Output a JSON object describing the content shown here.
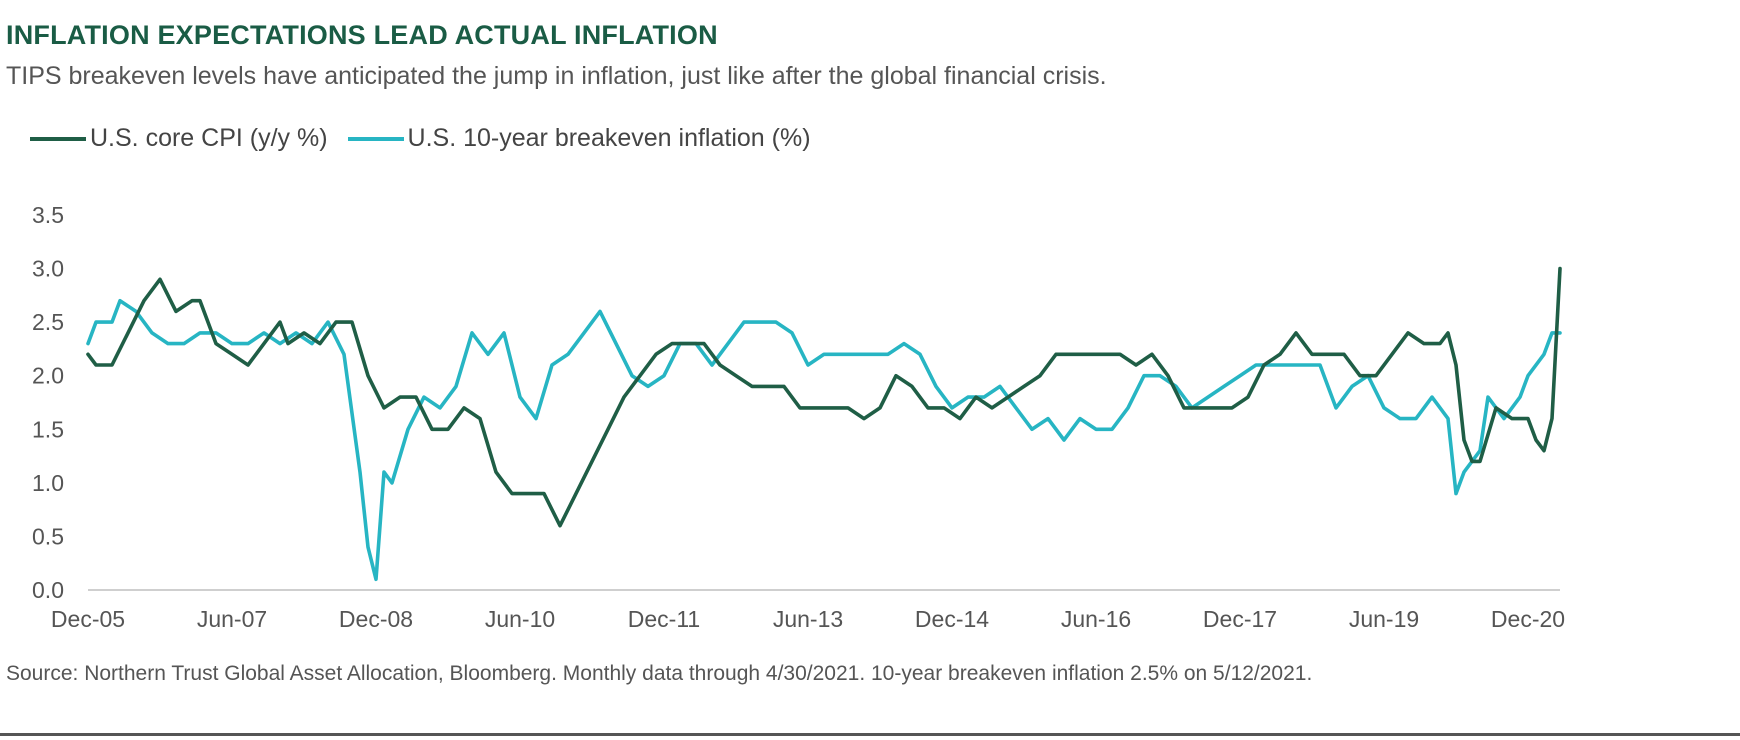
{
  "header": {
    "title": "INFLATION EXPECTATIONS LEAD ACTUAL INFLATION",
    "subtitle": "TIPS breakeven levels have anticipated the jump in inflation, just like after the global financial crisis."
  },
  "footer": {
    "source": "Source: Northern Trust Global Asset Allocation, Bloomberg. Monthly data through 4/30/2021. 10-year breakeven inflation 2.5% on 5/12/2021."
  },
  "chart_data": {
    "type": "line",
    "xlim": [
      "2005-12",
      "2021-04"
    ],
    "ylim": [
      0,
      3.5
    ],
    "grid": false,
    "legend_position": "top-left",
    "x_ticks": [
      "Dec-05",
      "Jun-07",
      "Dec-08",
      "Jun-10",
      "Dec-11",
      "Jun-13",
      "Dec-14",
      "Jun-16",
      "Dec-17",
      "Jun-19",
      "Dec-20"
    ],
    "y_ticks": [
      "0.0",
      "0.5",
      "1.0",
      "1.5",
      "2.0",
      "2.5",
      "3.0",
      "3.5"
    ],
    "series": [
      {
        "name": "U.S. core CPI (y/y %)",
        "color": "#1f5e46",
        "points": [
          [
            "2005-12",
            2.2
          ],
          [
            "2006-01",
            2.1
          ],
          [
            "2006-03",
            2.1
          ],
          [
            "2006-05",
            2.4
          ],
          [
            "2006-07",
            2.7
          ],
          [
            "2006-09",
            2.9
          ],
          [
            "2006-11",
            2.6
          ],
          [
            "2007-01",
            2.7
          ],
          [
            "2007-02",
            2.7
          ],
          [
            "2007-04",
            2.3
          ],
          [
            "2007-06",
            2.2
          ],
          [
            "2007-08",
            2.1
          ],
          [
            "2007-10",
            2.3
          ],
          [
            "2007-12",
            2.5
          ],
          [
            "2008-01",
            2.3
          ],
          [
            "2008-03",
            2.4
          ],
          [
            "2008-05",
            2.3
          ],
          [
            "2008-07",
            2.5
          ],
          [
            "2008-09",
            2.5
          ],
          [
            "2008-11",
            2.0
          ],
          [
            "2009-01",
            1.7
          ],
          [
            "2009-03",
            1.8
          ],
          [
            "2009-05",
            1.8
          ],
          [
            "2009-07",
            1.5
          ],
          [
            "2009-09",
            1.5
          ],
          [
            "2009-11",
            1.7
          ],
          [
            "2010-01",
            1.6
          ],
          [
            "2010-03",
            1.1
          ],
          [
            "2010-05",
            0.9
          ],
          [
            "2010-07",
            0.9
          ],
          [
            "2010-09",
            0.9
          ],
          [
            "2010-11",
            0.6
          ],
          [
            "2011-01",
            0.9
          ],
          [
            "2011-03",
            1.2
          ],
          [
            "2011-05",
            1.5
          ],
          [
            "2011-07",
            1.8
          ],
          [
            "2011-09",
            2.0
          ],
          [
            "2011-11",
            2.2
          ],
          [
            "2012-01",
            2.3
          ],
          [
            "2012-03",
            2.3
          ],
          [
            "2012-05",
            2.3
          ],
          [
            "2012-07",
            2.1
          ],
          [
            "2012-09",
            2.0
          ],
          [
            "2012-11",
            1.9
          ],
          [
            "2013-01",
            1.9
          ],
          [
            "2013-03",
            1.9
          ],
          [
            "2013-05",
            1.7
          ],
          [
            "2013-07",
            1.7
          ],
          [
            "2013-09",
            1.7
          ],
          [
            "2013-11",
            1.7
          ],
          [
            "2014-01",
            1.6
          ],
          [
            "2014-03",
            1.7
          ],
          [
            "2014-05",
            2.0
          ],
          [
            "2014-07",
            1.9
          ],
          [
            "2014-09",
            1.7
          ],
          [
            "2014-11",
            1.7
          ],
          [
            "2015-01",
            1.6
          ],
          [
            "2015-03",
            1.8
          ],
          [
            "2015-05",
            1.7
          ],
          [
            "2015-07",
            1.8
          ],
          [
            "2015-09",
            1.9
          ],
          [
            "2015-11",
            2.0
          ],
          [
            "2016-01",
            2.2
          ],
          [
            "2016-03",
            2.2
          ],
          [
            "2016-05",
            2.2
          ],
          [
            "2016-07",
            2.2
          ],
          [
            "2016-09",
            2.2
          ],
          [
            "2016-11",
            2.1
          ],
          [
            "2017-01",
            2.2
          ],
          [
            "2017-03",
            2.0
          ],
          [
            "2017-05",
            1.7
          ],
          [
            "2017-07",
            1.7
          ],
          [
            "2017-09",
            1.7
          ],
          [
            "2017-11",
            1.7
          ],
          [
            "2018-01",
            1.8
          ],
          [
            "2018-03",
            2.1
          ],
          [
            "2018-05",
            2.2
          ],
          [
            "2018-07",
            2.4
          ],
          [
            "2018-09",
            2.2
          ],
          [
            "2018-11",
            2.2
          ],
          [
            "2019-01",
            2.2
          ],
          [
            "2019-03",
            2.0
          ],
          [
            "2019-05",
            2.0
          ],
          [
            "2019-07",
            2.2
          ],
          [
            "2019-09",
            2.4
          ],
          [
            "2019-11",
            2.3
          ],
          [
            "2020-01",
            2.3
          ],
          [
            "2020-02",
            2.4
          ],
          [
            "2020-03",
            2.1
          ],
          [
            "2020-04",
            1.4
          ],
          [
            "2020-05",
            1.2
          ],
          [
            "2020-06",
            1.2
          ],
          [
            "2020-08",
            1.7
          ],
          [
            "2020-10",
            1.6
          ],
          [
            "2020-12",
            1.6
          ],
          [
            "2021-01",
            1.4
          ],
          [
            "2021-02",
            1.3
          ],
          [
            "2021-03",
            1.6
          ],
          [
            "2021-04",
            3.0
          ]
        ]
      },
      {
        "name": "U.S. 10-year breakeven inflation (%)",
        "color": "#27b5c3",
        "points": [
          [
            "2005-12",
            2.3
          ],
          [
            "2006-01",
            2.5
          ],
          [
            "2006-03",
            2.5
          ],
          [
            "2006-04",
            2.7
          ],
          [
            "2006-06",
            2.6
          ],
          [
            "2006-08",
            2.4
          ],
          [
            "2006-10",
            2.3
          ],
          [
            "2006-12",
            2.3
          ],
          [
            "2007-02",
            2.4
          ],
          [
            "2007-04",
            2.4
          ],
          [
            "2007-06",
            2.3
          ],
          [
            "2007-08",
            2.3
          ],
          [
            "2007-10",
            2.4
          ],
          [
            "2007-12",
            2.3
          ],
          [
            "2008-02",
            2.4
          ],
          [
            "2008-04",
            2.3
          ],
          [
            "2008-06",
            2.5
          ],
          [
            "2008-08",
            2.2
          ],
          [
            "2008-10",
            1.1
          ],
          [
            "2008-11",
            0.4
          ],
          [
            "2008-12",
            0.1
          ],
          [
            "2009-01",
            1.1
          ],
          [
            "2009-02",
            1.0
          ],
          [
            "2009-04",
            1.5
          ],
          [
            "2009-06",
            1.8
          ],
          [
            "2009-08",
            1.7
          ],
          [
            "2009-10",
            1.9
          ],
          [
            "2009-12",
            2.4
          ],
          [
            "2010-02",
            2.2
          ],
          [
            "2010-04",
            2.4
          ],
          [
            "2010-06",
            1.8
          ],
          [
            "2010-08",
            1.6
          ],
          [
            "2010-10",
            2.1
          ],
          [
            "2010-12",
            2.2
          ],
          [
            "2011-02",
            2.4
          ],
          [
            "2011-04",
            2.6
          ],
          [
            "2011-06",
            2.3
          ],
          [
            "2011-08",
            2.0
          ],
          [
            "2011-10",
            1.9
          ],
          [
            "2011-12",
            2.0
          ],
          [
            "2012-02",
            2.3
          ],
          [
            "2012-04",
            2.3
          ],
          [
            "2012-06",
            2.1
          ],
          [
            "2012-08",
            2.3
          ],
          [
            "2012-10",
            2.5
          ],
          [
            "2012-12",
            2.5
          ],
          [
            "2013-02",
            2.5
          ],
          [
            "2013-04",
            2.4
          ],
          [
            "2013-06",
            2.1
          ],
          [
            "2013-08",
            2.2
          ],
          [
            "2013-10",
            2.2
          ],
          [
            "2013-12",
            2.2
          ],
          [
            "2014-02",
            2.2
          ],
          [
            "2014-04",
            2.2
          ],
          [
            "2014-06",
            2.3
          ],
          [
            "2014-08",
            2.2
          ],
          [
            "2014-10",
            1.9
          ],
          [
            "2014-12",
            1.7
          ],
          [
            "2015-02",
            1.8
          ],
          [
            "2015-04",
            1.8
          ],
          [
            "2015-06",
            1.9
          ],
          [
            "2015-08",
            1.7
          ],
          [
            "2015-10",
            1.5
          ],
          [
            "2015-12",
            1.6
          ],
          [
            "2016-02",
            1.4
          ],
          [
            "2016-04",
            1.6
          ],
          [
            "2016-06",
            1.5
          ],
          [
            "2016-08",
            1.5
          ],
          [
            "2016-10",
            1.7
          ],
          [
            "2016-12",
            2.0
          ],
          [
            "2017-02",
            2.0
          ],
          [
            "2017-04",
            1.9
          ],
          [
            "2017-06",
            1.7
          ],
          [
            "2017-08",
            1.8
          ],
          [
            "2017-10",
            1.9
          ],
          [
            "2017-12",
            2.0
          ],
          [
            "2018-02",
            2.1
          ],
          [
            "2018-04",
            2.1
          ],
          [
            "2018-06",
            2.1
          ],
          [
            "2018-08",
            2.1
          ],
          [
            "2018-10",
            2.1
          ],
          [
            "2018-12",
            1.7
          ],
          [
            "2019-02",
            1.9
          ],
          [
            "2019-04",
            2.0
          ],
          [
            "2019-06",
            1.7
          ],
          [
            "2019-08",
            1.6
          ],
          [
            "2019-10",
            1.6
          ],
          [
            "2019-12",
            1.8
          ],
          [
            "2020-02",
            1.6
          ],
          [
            "2020-03",
            0.9
          ],
          [
            "2020-04",
            1.1
          ],
          [
            "2020-06",
            1.3
          ],
          [
            "2020-07",
            1.8
          ],
          [
            "2020-09",
            1.6
          ],
          [
            "2020-11",
            1.8
          ],
          [
            "2020-12",
            2.0
          ],
          [
            "2021-02",
            2.2
          ],
          [
            "2021-03",
            2.4
          ],
          [
            "2021-04",
            2.4
          ]
        ]
      }
    ]
  }
}
